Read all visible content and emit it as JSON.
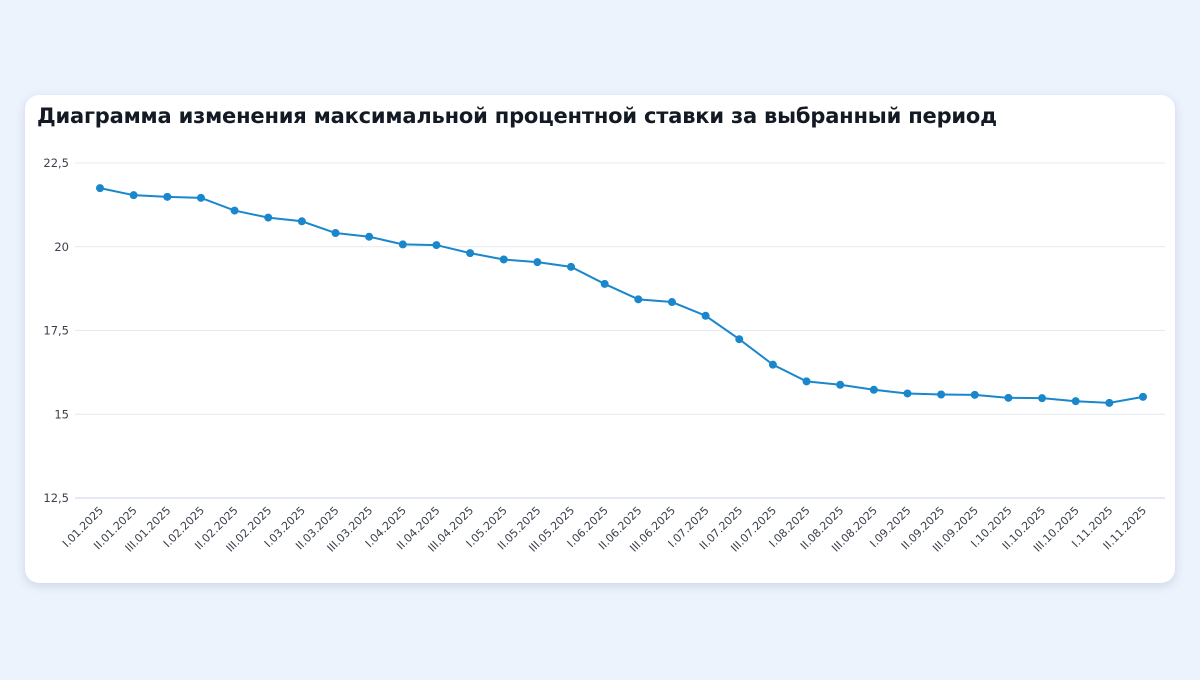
{
  "card": {
    "title": "Диаграмма изменения максимальной процентной ставки за выбранный период"
  },
  "colors": {
    "page_background": "#edf3fd",
    "card_background": "#ffffff",
    "series": "#1a87cc",
    "grid": "#e6e9ef",
    "axis": "#c9d3e8",
    "text": "#3a404c"
  },
  "chart_data": {
    "type": "line",
    "title": "Диаграмма изменения максимальной процентной ставки за выбранный период",
    "xlabel": "",
    "ylabel": "",
    "ylim": [
      12.5,
      22.5
    ],
    "yticks": [
      12.5,
      15,
      17.5,
      20,
      22.5
    ],
    "ytick_labels": [
      "12,5",
      "15",
      "17,5",
      "20",
      "22,5"
    ],
    "grid": true,
    "legend": "none",
    "categories": [
      "I.01.2025",
      "II.01.2025",
      "III.01.2025",
      "I.02.2025",
      "II.02.2025",
      "III.02.2025",
      "I.03.2025",
      "II.03.2025",
      "III.03.2025",
      "I.04.2025",
      "II.04.2025",
      "III.04.2025",
      "I.05.2025",
      "II.05.2025",
      "III.05.2025",
      "I.06.2025",
      "II.06.2025",
      "III.06.2025",
      "I.07.2025",
      "II.07.2025",
      "III.07.2025",
      "I.08.2025",
      "II.08.2025",
      "III.08.2025",
      "I.09.2025",
      "II.09.2025",
      "III.09.2025",
      "I.10.2025",
      "II.10.2025",
      "III.10.2025",
      "I.11.2025",
      "II.11.2025"
    ],
    "series": [
      {
        "values": [
          21.75,
          21.54,
          21.49,
          21.46,
          21.08,
          20.87,
          20.76,
          20.41,
          20.3,
          20.07,
          20.05,
          19.81,
          19.62,
          19.54,
          19.4,
          18.89,
          18.43,
          18.35,
          17.94,
          17.24,
          16.48,
          15.98,
          15.88,
          15.73,
          15.62,
          15.59,
          15.58,
          15.49,
          15.48,
          15.39,
          15.34,
          15.52
        ]
      }
    ]
  }
}
